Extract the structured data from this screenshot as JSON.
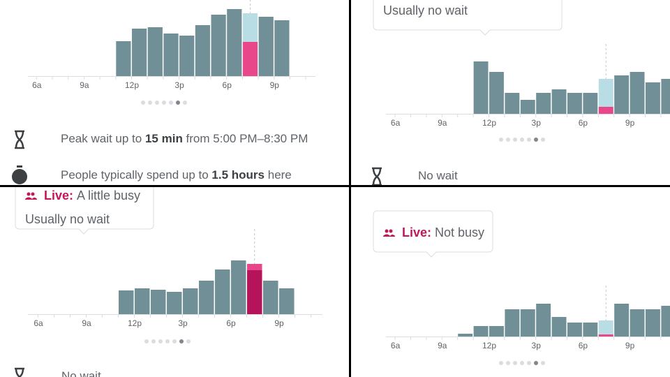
{
  "panels": [
    {
      "tick_labels": [
        "6a",
        "9a",
        "12p",
        "3p",
        "6p",
        "9p"
      ],
      "usual": [
        null,
        null,
        null,
        null,
        null,
        50,
        68,
        70,
        61,
        58,
        73,
        88,
        96,
        90,
        85,
        80,
        null,
        null
      ],
      "live": [
        null,
        null,
        null,
        null,
        null,
        null,
        null,
        null,
        null,
        null,
        null,
        null,
        null,
        49,
        null,
        null,
        null,
        null
      ],
      "info": [
        [
          "Peak wait up to ",
          "15 min",
          " from 5:00 PM–8:30 PM"
        ],
        [
          "People typically spend up to ",
          "1.5 hours",
          " here"
        ]
      ]
    },
    {
      "tick_labels": [
        "6a",
        "9a",
        "12p",
        "3p",
        "6p",
        "9p"
      ],
      "usual": [
        null,
        null,
        null,
        null,
        null,
        75,
        60,
        30,
        20,
        30,
        35,
        30,
        30,
        50,
        55,
        60,
        45,
        50
      ],
      "live": [
        null,
        null,
        null,
        null,
        null,
        null,
        null,
        null,
        null,
        null,
        null,
        null,
        null,
        10,
        null,
        null,
        null,
        null
      ],
      "tooltip": [
        [
          "Usually no wait"
        ]
      ],
      "info": [
        [
          "No wait"
        ]
      ]
    },
    {
      "tick_labels": [
        "6a",
        "9a",
        "12p",
        "3p",
        "6p",
        "9p"
      ],
      "usual": [
        null,
        null,
        null,
        null,
        null,
        34,
        37,
        35,
        32,
        37,
        48,
        64,
        77,
        63,
        48,
        37,
        null,
        null
      ],
      "live": [
        null,
        null,
        null,
        null,
        null,
        null,
        null,
        null,
        null,
        null,
        null,
        null,
        null,
        72,
        null,
        null,
        null,
        null
      ],
      "tooltip": [
        [
          "Live:",
          "A little busy"
        ],
        [
          "Usually no wait"
        ]
      ],
      "info": [
        [
          "No wait"
        ]
      ]
    },
    {
      "tick_labels": [
        "6a",
        "9a",
        "12p",
        "3p",
        "6p",
        "9p"
      ],
      "usual": [
        null,
        null,
        null,
        null,
        4,
        15,
        15,
        39,
        39,
        47,
        28,
        20,
        20,
        23,
        47,
        39,
        39,
        44
      ],
      "live": [
        null,
        null,
        null,
        null,
        null,
        null,
        null,
        null,
        null,
        null,
        null,
        null,
        null,
        3,
        null,
        null,
        null,
        null
      ],
      "tooltip": [
        [
          "Live:",
          "Not busy"
        ]
      ]
    }
  ]
}
